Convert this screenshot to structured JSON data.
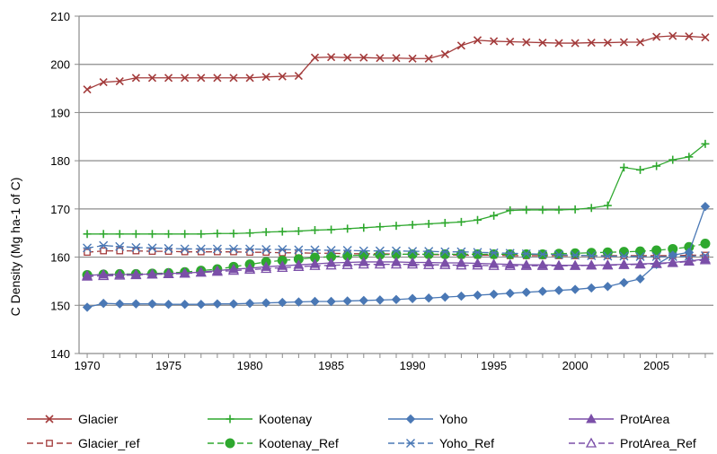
{
  "chart_data": {
    "type": "line",
    "ylabel": "C  Density (Mg ha-1 of C)",
    "xlim": [
      1969.5,
      2008.5
    ],
    "ylim": [
      140,
      210
    ],
    "yticks": [
      140,
      150,
      160,
      170,
      180,
      190,
      200,
      210
    ],
    "xticks": [
      1970,
      1975,
      1980,
      1985,
      1990,
      1995,
      2000,
      2005
    ],
    "grid": "horizontal",
    "legend_position": "bottom",
    "x": [
      1970,
      1971,
      1972,
      1973,
      1974,
      1975,
      1976,
      1977,
      1978,
      1979,
      1980,
      1981,
      1982,
      1983,
      1984,
      1985,
      1986,
      1987,
      1988,
      1989,
      1990,
      1991,
      1992,
      1993,
      1994,
      1995,
      1996,
      1997,
      1998,
      1999,
      2000,
      2001,
      2002,
      2003,
      2004,
      2005,
      2006,
      2007,
      2008
    ],
    "series": [
      {
        "name": "Glacier",
        "color": "#A33B3B",
        "marker": "x",
        "dashed": false,
        "values": [
          194.8,
          196.3,
          196.5,
          197.2,
          197.2,
          197.2,
          197.2,
          197.2,
          197.2,
          197.2,
          197.2,
          197.4,
          197.5,
          197.6,
          201.4,
          201.5,
          201.4,
          201.4,
          201.3,
          201.3,
          201.2,
          201.2,
          202.1,
          203.9,
          205.0,
          204.8,
          204.7,
          204.6,
          204.5,
          204.4,
          204.4,
          204.5,
          204.5,
          204.6,
          204.6,
          205.7,
          205.9,
          205.8,
          205.6
        ]
      },
      {
        "name": "Kootenay",
        "color": "#2EA82E",
        "marker": "plus",
        "dashed": false,
        "values": [
          164.8,
          164.8,
          164.8,
          164.8,
          164.8,
          164.8,
          164.8,
          164.8,
          164.9,
          164.9,
          165.0,
          165.2,
          165.3,
          165.4,
          165.6,
          165.7,
          165.9,
          166.1,
          166.3,
          166.5,
          166.7,
          166.9,
          167.1,
          167.3,
          167.7,
          168.6,
          169.7,
          169.8,
          169.8,
          169.8,
          169.9,
          170.2,
          170.7,
          178.6,
          178.1,
          178.9,
          180.2,
          180.8,
          183.5
        ]
      },
      {
        "name": "Yoho",
        "color": "#4A78B5",
        "marker": "diamond",
        "dashed": false,
        "values": [
          149.6,
          150.4,
          150.3,
          150.3,
          150.3,
          150.2,
          150.2,
          150.2,
          150.3,
          150.3,
          150.4,
          150.5,
          150.6,
          150.7,
          150.8,
          150.8,
          150.9,
          151.0,
          151.1,
          151.2,
          151.4,
          151.5,
          151.7,
          151.9,
          152.1,
          152.3,
          152.5,
          152.7,
          152.9,
          153.1,
          153.3,
          153.6,
          153.9,
          154.7,
          155.5,
          158.5,
          160.4,
          161.0,
          170.5
        ]
      },
      {
        "name": "ProtArea",
        "color": "#7B4FA8",
        "marker": "triangle",
        "dashed": false,
        "values": [
          156.2,
          156.4,
          156.4,
          156.4,
          156.5,
          156.6,
          156.7,
          156.9,
          157.2,
          157.5,
          157.7,
          158.0,
          158.2,
          158.4,
          158.6,
          158.8,
          158.9,
          159.0,
          159.0,
          159.0,
          158.9,
          158.9,
          158.8,
          158.8,
          158.7,
          158.6,
          158.5,
          158.4,
          158.4,
          158.3,
          158.3,
          158.3,
          158.4,
          158.5,
          158.6,
          158.7,
          158.9,
          159.2,
          159.6
        ]
      },
      {
        "name": "Glacier_ref",
        "color": "#A33B3B",
        "marker": "square-open",
        "dashed": true,
        "values": [
          161.0,
          161.3,
          161.3,
          161.3,
          161.2,
          161.2,
          161.1,
          161.1,
          161.1,
          161.1,
          161.0,
          161.0,
          160.9,
          160.9,
          160.8,
          160.8,
          160.7,
          160.7,
          160.7,
          160.6,
          160.6,
          160.5,
          160.5,
          160.4,
          160.4,
          160.4,
          160.3,
          160.3,
          160.3,
          160.3,
          160.3,
          160.3,
          160.3,
          160.3,
          160.3,
          160.3,
          160.3,
          160.4,
          160.4
        ]
      },
      {
        "name": "Kootenay_Ref",
        "color": "#2EA82E",
        "marker": "circle",
        "dashed": true,
        "values": [
          156.3,
          156.4,
          156.5,
          156.5,
          156.6,
          156.7,
          156.9,
          157.2,
          157.5,
          158.0,
          158.5,
          159.0,
          159.3,
          159.6,
          159.9,
          160.1,
          160.3,
          160.4,
          160.5,
          160.6,
          160.6,
          160.6,
          160.6,
          160.6,
          160.6,
          160.6,
          160.6,
          160.6,
          160.6,
          160.7,
          160.8,
          160.9,
          161.0,
          161.1,
          161.2,
          161.4,
          161.7,
          162.1,
          162.8
        ]
      },
      {
        "name": "Yoho_Ref",
        "color": "#4A78B5",
        "marker": "asterisk",
        "dashed": true,
        "values": [
          161.9,
          162.4,
          162.2,
          162.0,
          161.9,
          161.8,
          161.7,
          161.7,
          161.7,
          161.7,
          161.7,
          161.6,
          161.6,
          161.5,
          161.5,
          161.4,
          161.4,
          161.3,
          161.3,
          161.3,
          161.2,
          161.2,
          161.1,
          161.1,
          161.0,
          160.9,
          160.8,
          160.7,
          160.6,
          160.5,
          160.4,
          160.3,
          160.2,
          160.2,
          160.1,
          160.1,
          160.1,
          160.2,
          160.3
        ]
      },
      {
        "name": "ProtArea_Ref",
        "color": "#7B4FA8",
        "marker": "triangle-open",
        "dashed": true,
        "values": [
          156.0,
          156.1,
          156.2,
          156.3,
          156.4,
          156.5,
          156.6,
          156.8,
          157.0,
          157.2,
          157.4,
          157.6,
          157.8,
          158.0,
          158.2,
          158.3,
          158.4,
          158.5,
          158.5,
          158.5,
          158.5,
          158.4,
          158.4,
          158.3,
          158.3,
          158.2,
          158.2,
          158.2,
          158.2,
          158.2,
          158.2,
          158.3,
          158.3,
          158.4,
          158.5,
          158.6,
          158.8,
          159.1,
          159.4
        ]
      }
    ]
  }
}
